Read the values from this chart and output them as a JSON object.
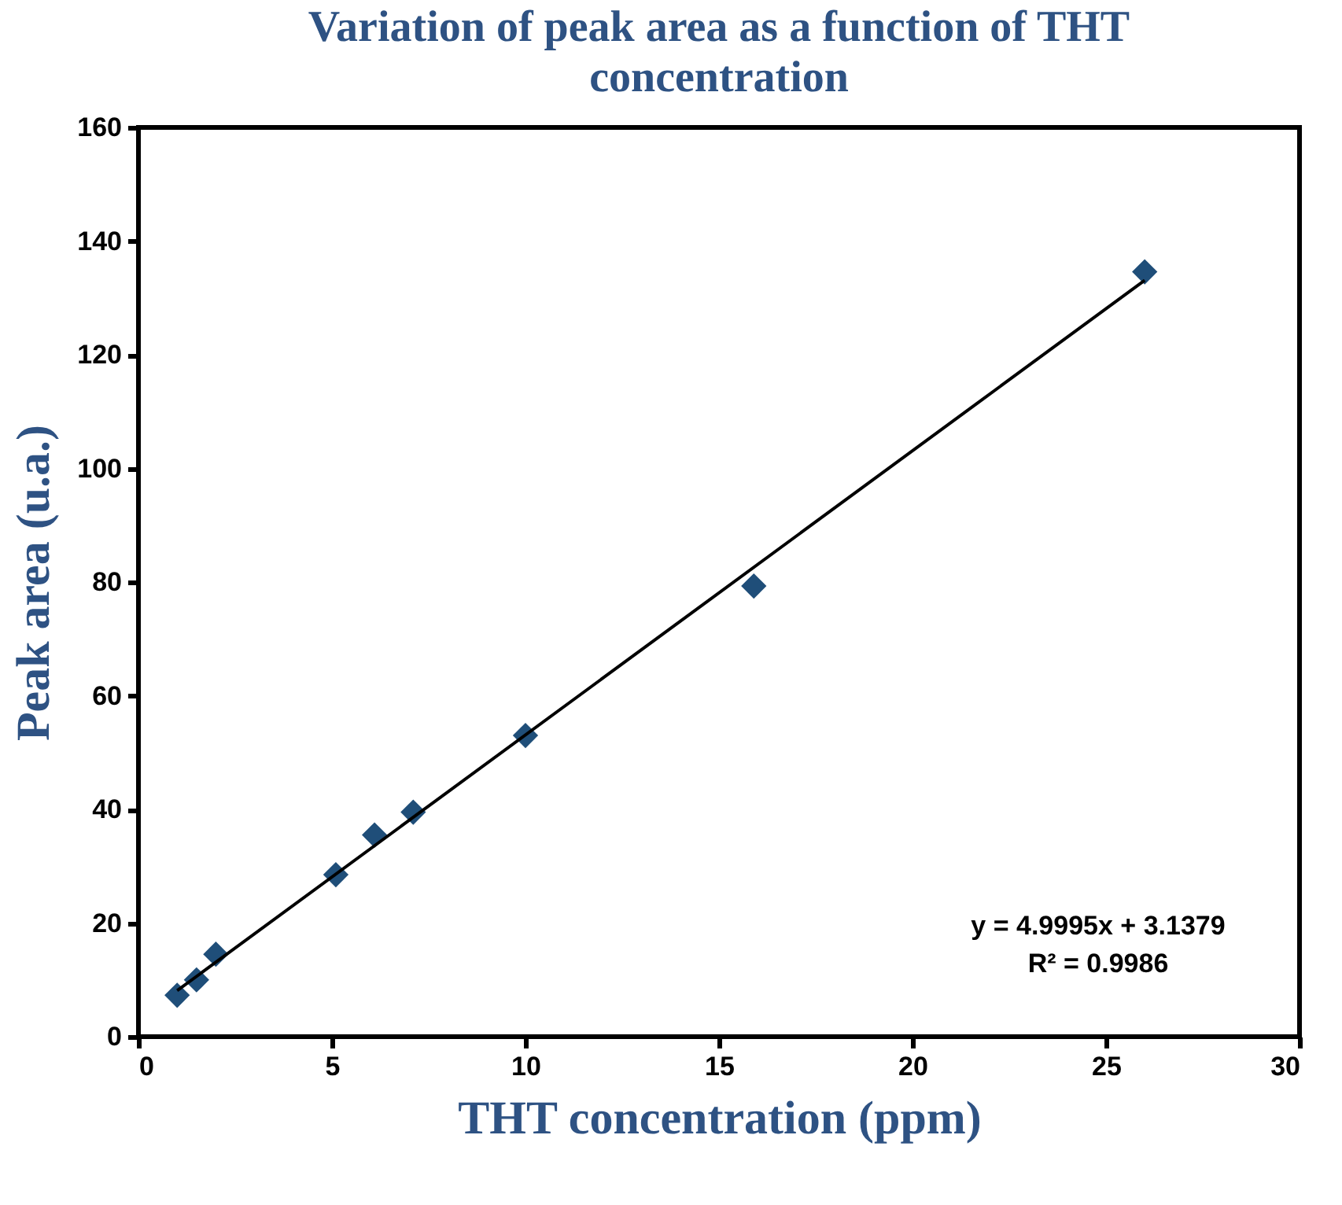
{
  "chart_data": {
    "type": "scatter",
    "title": "Variation of peak area as a function of THT concentration",
    "xlabel": "THT concentration (ppm)",
    "ylabel": "Peak area (u.a.)",
    "xlim": [
      0,
      30
    ],
    "xticks": [
      0,
      5,
      10,
      15,
      20,
      25,
      30
    ],
    "ylim": [
      0,
      160
    ],
    "yticks": [
      0,
      20,
      40,
      60,
      80,
      100,
      120,
      140,
      160
    ],
    "grid": false,
    "marker": "diamond",
    "series": [
      {
        "color": "#1f4e79",
        "x": [
          1,
          1.5,
          2,
          5.1,
          6.1,
          7.1,
          10,
          15.9,
          26
        ],
        "values": [
          7.3,
          10,
          14.5,
          28.5,
          35.5,
          39.5,
          53,
          79.3,
          134.6
        ]
      },
      {
        "type": "line",
        "color": "#000000",
        "marker": "none",
        "line_style": "solid",
        "x": [
          1,
          26
        ],
        "values": [
          8.1,
          133.1
        ]
      }
    ],
    "annotations": [
      "y = 4.9995x + 3.1379",
      "R² = 0.9986"
    ]
  }
}
